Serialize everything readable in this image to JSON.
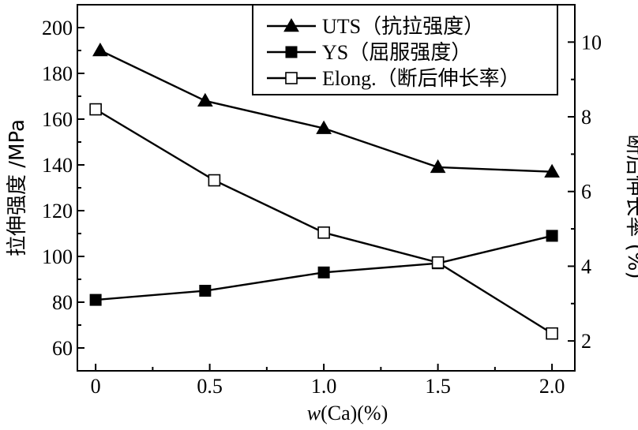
{
  "chart_data": {
    "type": "line",
    "x": [
      0,
      0.5,
      1.0,
      1.5,
      2.0
    ],
    "xlabel_parts": [
      "w",
      "(Ca)(%)"
    ],
    "ylabel_left": "拉伸强度 /MPa",
    "ylabel_right": "断后伸长率 (%)",
    "x_ticks": [
      "0",
      "0.5",
      "1.0",
      "1.5",
      "2.0"
    ],
    "y_left_ticks": [
      "60",
      "80",
      "100",
      "120",
      "140",
      "160",
      "180",
      "200"
    ],
    "y_right_ticks": [
      "2",
      "4",
      "6",
      "8",
      "10"
    ],
    "xlim": [
      -0.08,
      2.1
    ],
    "ylim_left": [
      50,
      210
    ],
    "ylim_right": [
      1.2,
      11.0
    ],
    "grid": false,
    "legend_position": "top-right",
    "series": [
      {
        "name": "UTS（抗拉强度）",
        "axis": "left",
        "marker": "filled-triangle",
        "x": [
          0.02,
          0.48,
          1.0,
          1.5,
          2.0
        ],
        "values": [
          190,
          168,
          156,
          139,
          137
        ]
      },
      {
        "name": "YS（屈服强度）",
        "axis": "left",
        "marker": "filled-square",
        "x": [
          0,
          0.48,
          1.0,
          1.5,
          2.0
        ],
        "values": [
          81,
          85,
          93,
          97,
          109
        ]
      },
      {
        "name": "Elong.（断后伸长率）",
        "axis": "right",
        "marker": "open-square",
        "x": [
          0,
          0.52,
          1.0,
          1.5,
          2.0
        ],
        "values": [
          8.2,
          6.3,
          4.9,
          4.1,
          2.2
        ]
      }
    ]
  }
}
